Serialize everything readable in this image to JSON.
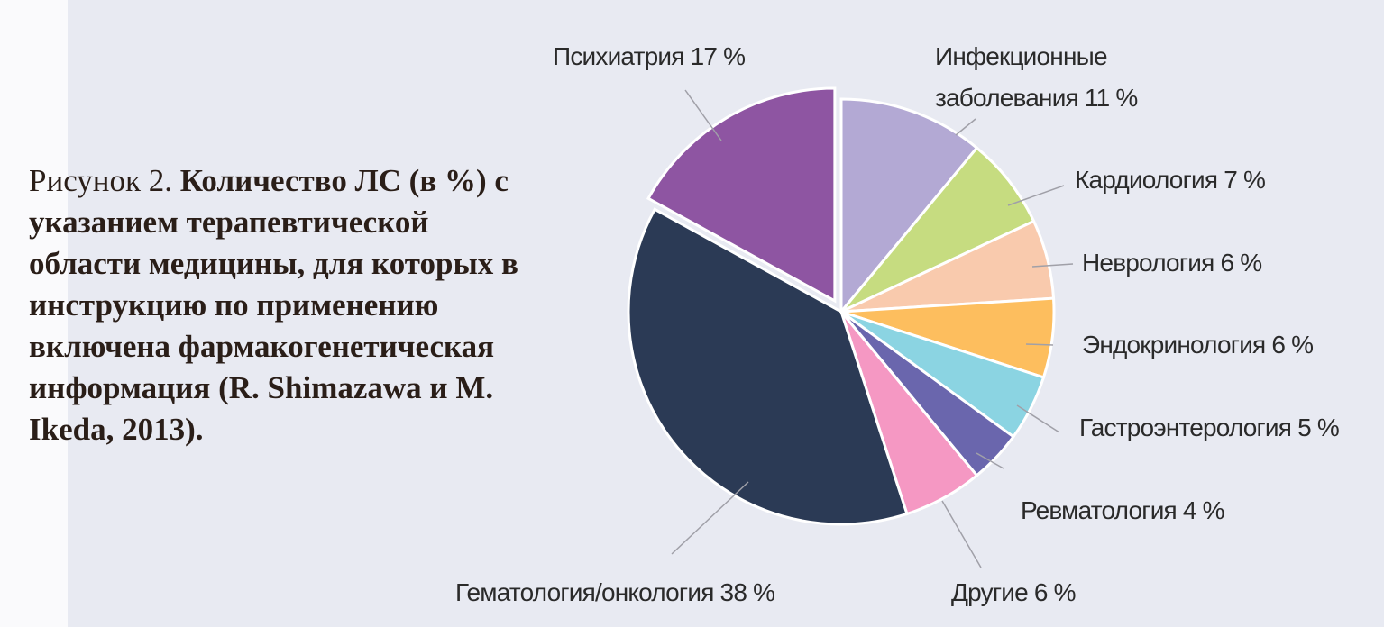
{
  "chart_data": {
    "type": "pie",
    "figure_label": "Рисунок 2.",
    "title": "Количество ЛС (в %) с указанием терапевтической области медицины, для которых в инструкцию по применению включена фармакогенетическая информация (R. Shimazawa и M. Ikeda, 2013).",
    "categories": [
      "Инфекционные заболевания",
      "Кардиология",
      "Неврология",
      "Эндокринология",
      "Гастроэнтерология",
      "Ревматология",
      "Другие",
      "Гематология/онкология",
      "Психиатрия"
    ],
    "values": [
      11,
      7,
      6,
      6,
      5,
      4,
      6,
      38,
      17
    ],
    "value_labels": [
      "11 %",
      "7 %",
      "6 %",
      "6 %",
      "5 %",
      "4 %",
      "6 %",
      "38 %",
      "17 %"
    ],
    "colors": [
      "#b3a9d4",
      "#c6dc80",
      "#f9caad",
      "#fdbe5e",
      "#8bd4e2",
      "#6a66ad",
      "#f598c3",
      "#2b3a55",
      "#8e55a2"
    ],
    "exploded": [
      false,
      false,
      false,
      false,
      false,
      false,
      false,
      false,
      true
    ]
  }
}
